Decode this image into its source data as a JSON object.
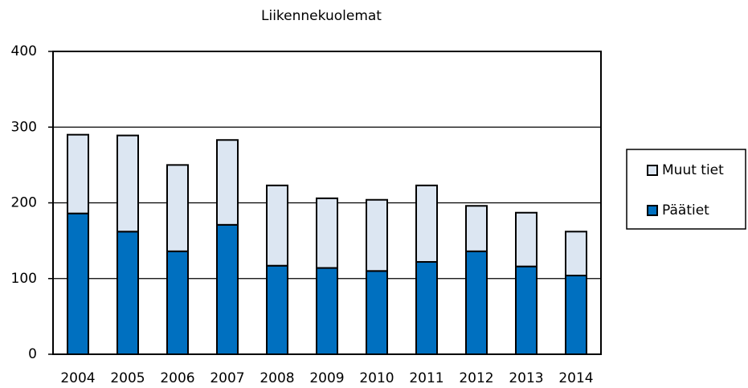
{
  "chart_data": {
    "type": "stacked_bar",
    "title": "Liikennekuolemat",
    "categories": [
      "2004",
      "2005",
      "2006",
      "2007",
      "2008",
      "2009",
      "2010",
      "2011",
      "2012",
      "2013",
      "2014"
    ],
    "series": [
      {
        "name": "Päätiet",
        "color": "#0070c0",
        "values": [
          186,
          162,
          136,
          171,
          117,
          114,
          110,
          122,
          136,
          116,
          104
        ]
      },
      {
        "name": "Muut tiet",
        "color": "#dce6f2",
        "values": [
          104,
          127,
          114,
          112,
          106,
          92,
          94,
          101,
          60,
          71,
          58
        ]
      }
    ],
    "ylim": [
      0,
      400
    ],
    "yticks": [
      0,
      100,
      200,
      300,
      400
    ],
    "grid": true,
    "legend": "right"
  }
}
